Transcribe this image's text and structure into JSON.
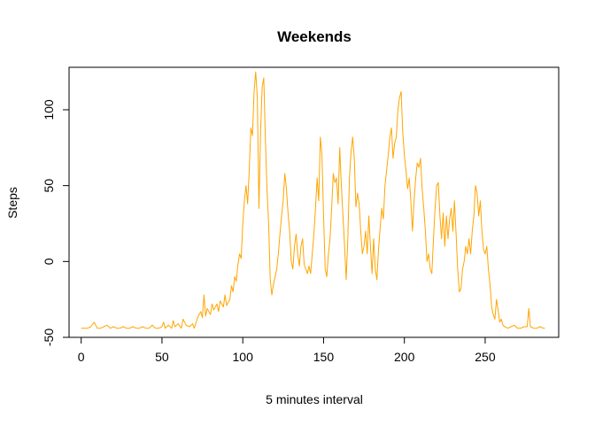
{
  "chart_data": {
    "type": "line",
    "title": "Weekends",
    "xlabel": "5 minutes interval",
    "ylabel": "Steps",
    "xlim": [
      -7.5,
      295.5
    ],
    "ylim": [
      -50,
      128
    ],
    "xticks": [
      0,
      50,
      100,
      150,
      200,
      250
    ],
    "yticks": [
      -50,
      0,
      50,
      100
    ],
    "line_color": "#FFA500",
    "grid": false,
    "series": [
      {
        "name": "",
        "points": [
          [
            0,
            -44
          ],
          [
            2,
            -44
          ],
          [
            4,
            -44
          ],
          [
            6,
            -43
          ],
          [
            8,
            -40
          ],
          [
            10,
            -44
          ],
          [
            12,
            -44
          ],
          [
            14,
            -43
          ],
          [
            16,
            -42
          ],
          [
            18,
            -44
          ],
          [
            20,
            -43
          ],
          [
            22,
            -44
          ],
          [
            24,
            -44
          ],
          [
            26,
            -43
          ],
          [
            28,
            -44
          ],
          [
            30,
            -44
          ],
          [
            32,
            -43
          ],
          [
            34,
            -44
          ],
          [
            36,
            -44
          ],
          [
            38,
            -43
          ],
          [
            40,
            -44
          ],
          [
            42,
            -44
          ],
          [
            44,
            -42
          ],
          [
            46,
            -44
          ],
          [
            48,
            -44
          ],
          [
            50,
            -43
          ],
          [
            51,
            -40
          ],
          [
            52,
            -44
          ],
          [
            54,
            -42
          ],
          [
            56,
            -44
          ],
          [
            57,
            -39
          ],
          [
            58,
            -43
          ],
          [
            60,
            -41
          ],
          [
            62,
            -44
          ],
          [
            63,
            -38
          ],
          [
            65,
            -42
          ],
          [
            67,
            -43
          ],
          [
            69,
            -41
          ],
          [
            70,
            -44
          ],
          [
            72,
            -37
          ],
          [
            74,
            -33
          ],
          [
            75,
            -37
          ],
          [
            76,
            -22
          ],
          [
            77,
            -36
          ],
          [
            78,
            -31
          ],
          [
            80,
            -35
          ],
          [
            81,
            -28
          ],
          [
            82,
            -32
          ],
          [
            84,
            -28
          ],
          [
            85,
            -33
          ],
          [
            86,
            -26
          ],
          [
            88,
            -30
          ],
          [
            89,
            -22
          ],
          [
            90,
            -29
          ],
          [
            92,
            -25
          ],
          [
            93,
            -16
          ],
          [
            94,
            -20
          ],
          [
            95,
            -10
          ],
          [
            96,
            -13
          ],
          [
            97,
            -2
          ],
          [
            98,
            5
          ],
          [
            99,
            2
          ],
          [
            100,
            25
          ],
          [
            101,
            40
          ],
          [
            102,
            50
          ],
          [
            103,
            38
          ],
          [
            104,
            60
          ],
          [
            105,
            88
          ],
          [
            106,
            83
          ],
          [
            107,
            112
          ],
          [
            108,
            125
          ],
          [
            109,
            108
          ],
          [
            110,
            35
          ],
          [
            111,
            85
          ],
          [
            112,
            115
          ],
          [
            113,
            121
          ],
          [
            114,
            80
          ],
          [
            115,
            47
          ],
          [
            116,
            25
          ],
          [
            117,
            -12
          ],
          [
            118,
            -22
          ],
          [
            119,
            -15
          ],
          [
            120,
            -10
          ],
          [
            121,
            -5
          ],
          [
            122,
            5
          ],
          [
            123,
            18
          ],
          [
            124,
            30
          ],
          [
            125,
            40
          ],
          [
            126,
            58
          ],
          [
            127,
            48
          ],
          [
            128,
            32
          ],
          [
            129,
            20
          ],
          [
            130,
            0
          ],
          [
            131,
            -5
          ],
          [
            132,
            10
          ],
          [
            133,
            18
          ],
          [
            134,
            5
          ],
          [
            135,
            -3
          ],
          [
            136,
            10
          ],
          [
            137,
            15
          ],
          [
            138,
            -2
          ],
          [
            139,
            -5
          ],
          [
            140,
            -8
          ],
          [
            141,
            -3
          ],
          [
            142,
            -8
          ],
          [
            143,
            5
          ],
          [
            144,
            18
          ],
          [
            145,
            35
          ],
          [
            146,
            55
          ],
          [
            147,
            40
          ],
          [
            148,
            82
          ],
          [
            149,
            70
          ],
          [
            150,
            30
          ],
          [
            151,
            -5
          ],
          [
            152,
            -10
          ],
          [
            153,
            5
          ],
          [
            154,
            15
          ],
          [
            155,
            35
          ],
          [
            156,
            58
          ],
          [
            157,
            52
          ],
          [
            158,
            55
          ],
          [
            159,
            38
          ],
          [
            160,
            75
          ],
          [
            161,
            50
          ],
          [
            162,
            30
          ],
          [
            163,
            10
          ],
          [
            164,
            -12
          ],
          [
            165,
            15
          ],
          [
            166,
            55
          ],
          [
            167,
            72
          ],
          [
            168,
            82
          ],
          [
            169,
            68
          ],
          [
            170,
            36
          ],
          [
            171,
            45
          ],
          [
            172,
            38
          ],
          [
            173,
            20
          ],
          [
            174,
            5
          ],
          [
            175,
            10
          ],
          [
            176,
            20
          ],
          [
            177,
            5
          ],
          [
            178,
            30
          ],
          [
            179,
            10
          ],
          [
            180,
            -8
          ],
          [
            181,
            15
          ],
          [
            182,
            -5
          ],
          [
            183,
            -12
          ],
          [
            184,
            8
          ],
          [
            185,
            22
          ],
          [
            186,
            35
          ],
          [
            187,
            28
          ],
          [
            188,
            50
          ],
          [
            189,
            60
          ],
          [
            190,
            70
          ],
          [
            191,
            82
          ],
          [
            192,
            88
          ],
          [
            193,
            68
          ],
          [
            194,
            78
          ],
          [
            195,
            82
          ],
          [
            196,
            100
          ],
          [
            197,
            108
          ],
          [
            198,
            112
          ],
          [
            199,
            85
          ],
          [
            200,
            70
          ],
          [
            201,
            60
          ],
          [
            202,
            48
          ],
          [
            203,
            55
          ],
          [
            204,
            40
          ],
          [
            205,
            20
          ],
          [
            206,
            40
          ],
          [
            207,
            55
          ],
          [
            208,
            65
          ],
          [
            209,
            62
          ],
          [
            210,
            68
          ],
          [
            211,
            48
          ],
          [
            212,
            35
          ],
          [
            213,
            20
          ],
          [
            214,
            0
          ],
          [
            215,
            5
          ],
          [
            216,
            -5
          ],
          [
            217,
            -8
          ],
          [
            218,
            15
          ],
          [
            219,
            35
          ],
          [
            220,
            50
          ],
          [
            221,
            52
          ],
          [
            222,
            30
          ],
          [
            223,
            15
          ],
          [
            224,
            32
          ],
          [
            225,
            10
          ],
          [
            226,
            30
          ],
          [
            227,
            15
          ],
          [
            228,
            28
          ],
          [
            229,
            35
          ],
          [
            230,
            20
          ],
          [
            231,
            40
          ],
          [
            232,
            18
          ],
          [
            233,
            -5
          ],
          [
            234,
            -20
          ],
          [
            235,
            -18
          ],
          [
            236,
            -5
          ],
          [
            237,
            0
          ],
          [
            238,
            10
          ],
          [
            239,
            5
          ],
          [
            240,
            15
          ],
          [
            241,
            5
          ],
          [
            242,
            20
          ],
          [
            243,
            30
          ],
          [
            244,
            50
          ],
          [
            245,
            45
          ],
          [
            246,
            30
          ],
          [
            247,
            40
          ],
          [
            248,
            20
          ],
          [
            249,
            8
          ],
          [
            250,
            5
          ],
          [
            251,
            10
          ],
          [
            252,
            -5
          ],
          [
            253,
            -15
          ],
          [
            254,
            -30
          ],
          [
            255,
            -35
          ],
          [
            256,
            -38
          ],
          [
            257,
            -25
          ],
          [
            258,
            -32
          ],
          [
            259,
            -40
          ],
          [
            260,
            -38
          ],
          [
            261,
            -42
          ],
          [
            262,
            -43
          ],
          [
            264,
            -44
          ],
          [
            266,
            -43
          ],
          [
            268,
            -42
          ],
          [
            270,
            -44
          ],
          [
            272,
            -44
          ],
          [
            274,
            -43
          ],
          [
            276,
            -43
          ],
          [
            277,
            -31
          ],
          [
            278,
            -43
          ],
          [
            280,
            -44
          ],
          [
            282,
            -44
          ],
          [
            284,
            -43
          ],
          [
            286,
            -44
          ],
          [
            287,
            -44
          ]
        ]
      }
    ]
  }
}
